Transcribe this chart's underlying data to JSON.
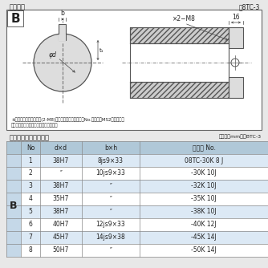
{
  "bg_color": "#e8e8e8",
  "white": "#ffffff",
  "light_blue": "#dce9f5",
  "med_blue": "#c5d8e8",
  "dark_blue": "#b0c8d8",
  "border_color": "#777777",
  "text_color": "#222222",
  "hatch_color": "#aaaaaa",
  "title1": "軸穴形状",
  "ref1": "囸8TC-3",
  "title2": "軸穴形状コード一覧表",
  "ref2": "（単位：mm　围BTC-3",
  "note1": "※セットボルト用タップ(2-M8)が必要な場合は記コードNo.の末尾にMS2を付ける。",
  "note2": "（セットボルトは付属されています。）",
  "label_B": "B",
  "dim_label": "×2−M8",
  "dim_16": "16",
  "label_b": "b",
  "label_t1": "t₁",
  "label_phi_d": "φd",
  "table_label": "B",
  "table_headers": [
    "No",
    "d×d",
    "b×h",
    "コード No."
  ],
  "table_data": [
    [
      "1",
      "38H7",
      "8js9×33",
      "08TC-30K 8 J"
    ],
    [
      "2",
      "″",
      "10js9×33",
      "-30K 10J"
    ],
    [
      "3",
      "38H7",
      "″",
      "-32K 10J"
    ],
    [
      "4",
      "35H7",
      "″",
      "-35K 10J"
    ],
    [
      "5",
      "38H7",
      "″",
      "-38K 10J"
    ],
    [
      "6",
      "40H7",
      "12js9×33",
      "-40K 12J"
    ],
    [
      "7",
      "45H7",
      "14js9×38",
      "-45K 14J"
    ],
    [
      "8",
      "50H7",
      "″",
      "-50K 14J"
    ]
  ]
}
